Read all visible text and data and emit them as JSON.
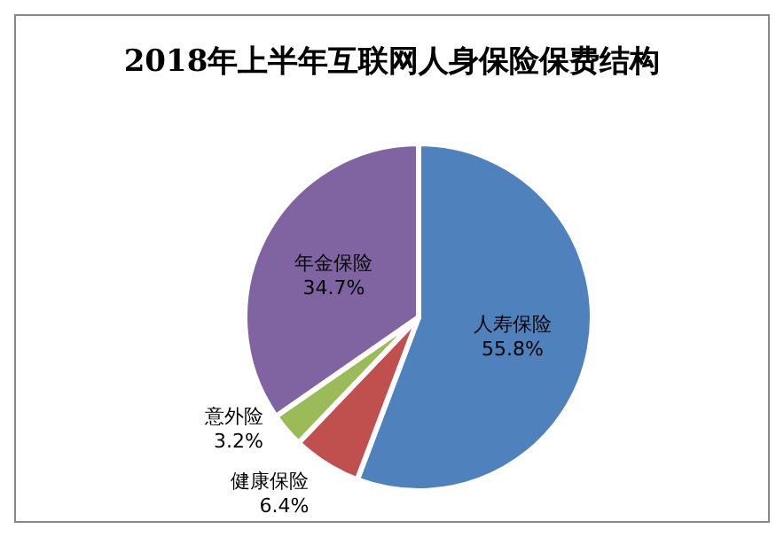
{
  "chart_data": {
    "type": "pie",
    "title": "2018年上半年互联网人身保险保费结构",
    "categories": [
      "人寿保险",
      "健康保险",
      "意外险",
      "年金保险"
    ],
    "values": [
      55.8,
      6.4,
      3.2,
      34.7
    ],
    "value_labels": [
      "55.8%",
      "6.4%",
      "3.2%",
      "34.7%"
    ],
    "colors": [
      "#4f81bd",
      "#c0504d",
      "#9bbb59",
      "#8064a2"
    ]
  }
}
